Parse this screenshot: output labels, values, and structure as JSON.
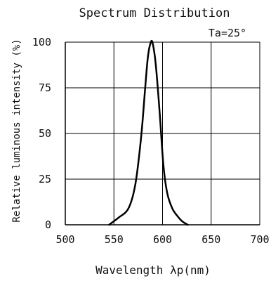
{
  "chart_data": {
    "type": "line",
    "title": "Spectrum Distribution",
    "xlabel": "Wavelength λp(nm)",
    "ylabel": "Relative luminous intensity (%)",
    "annotation": "Ta=25°",
    "xlim": [
      500,
      700
    ],
    "ylim": [
      0,
      100
    ],
    "x_ticks": [
      500,
      550,
      600,
      650,
      700
    ],
    "x_tick_labels": [
      "500",
      "550",
      "600",
      "650",
      "700"
    ],
    "y_ticks": [
      0,
      25,
      50,
      75,
      100
    ],
    "y_tick_labels": [
      "0",
      "25",
      "50",
      "75",
      "100"
    ],
    "grid": true,
    "series": [
      {
        "x": [
          545,
          555,
          565,
          572,
          578,
          582,
          585,
          588,
          590,
          593,
          597,
          601,
          605,
          610,
          615,
          620,
          626
        ],
        "y": [
          0,
          4,
          9,
          22,
          48,
          74,
          92,
          100,
          99,
          88,
          62,
          32,
          17,
          9,
          5,
          2,
          0
        ]
      }
    ],
    "colors": {
      "line": "#000000",
      "grid": "#000000"
    }
  }
}
